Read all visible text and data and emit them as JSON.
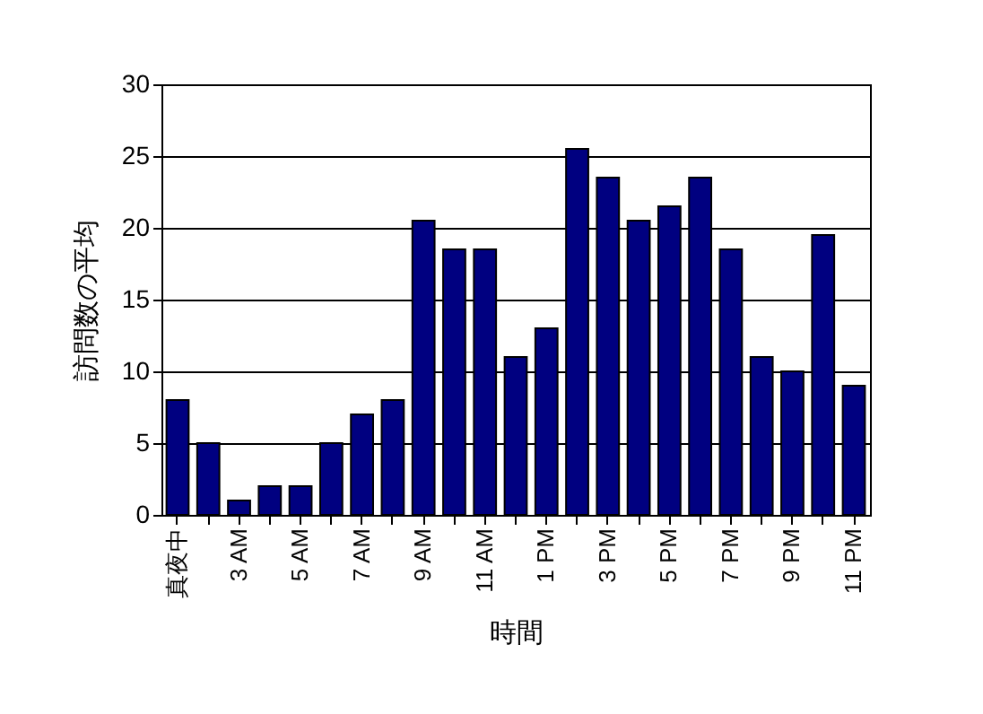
{
  "chart_data": {
    "type": "bar",
    "xlabel": "時間",
    "ylabel": "訪問数の平均",
    "categories": [
      "真夜中",
      null,
      "3 AM",
      null,
      "5 AM",
      null,
      "7 AM",
      null,
      "9 AM",
      null,
      "11 AM",
      null,
      "1 PM",
      null,
      "3 PM",
      null,
      "5 PM",
      null,
      "7 PM",
      null,
      "9 PM",
      null,
      "11 PM"
    ],
    "values": [
      8,
      5,
      1,
      2,
      2,
      5,
      7,
      8,
      20.5,
      18.5,
      18.5,
      11,
      13,
      25.5,
      23.5,
      20.5,
      21.5,
      23.5,
      18.5,
      11,
      10,
      19.5,
      9
    ],
    "color": "#000080",
    "ylim": [
      0,
      30
    ],
    "yticks": [
      0,
      5,
      10,
      15,
      20,
      25,
      30
    ],
    "grid": "y"
  }
}
